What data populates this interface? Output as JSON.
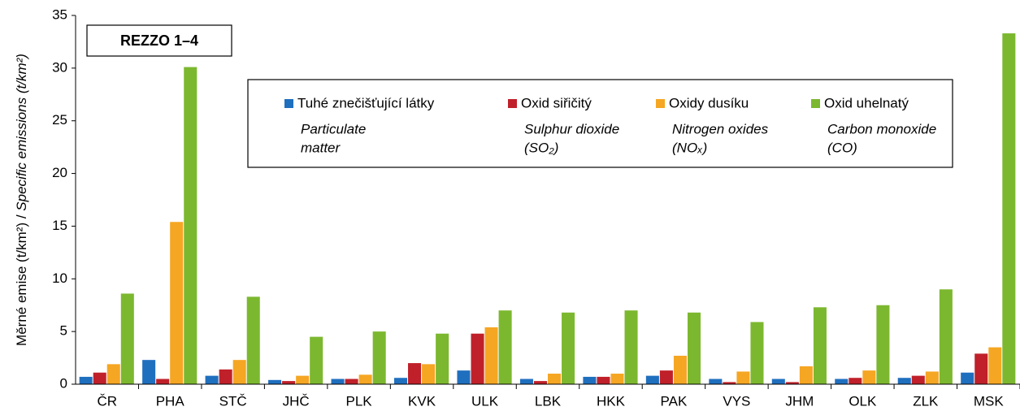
{
  "chart_data": {
    "type": "bar",
    "annotation": "REZZO 1–4",
    "y_label": [
      "Měrné emise (t/km²) / ",
      "Specific emissions (t/km²)"
    ],
    "categories": [
      "ČR",
      "PHA",
      "STČ",
      "JHČ",
      "PLK",
      "KVK",
      "ULK",
      "LBK",
      "HKK",
      "PAK",
      "VYS",
      "JHM",
      "OLK",
      "ZLK",
      "MSK"
    ],
    "series": [
      {
        "name": "Tuhé znečišťující látky",
        "color": "#1f6fbf",
        "values": [
          0.7,
          2.3,
          0.8,
          0.4,
          0.5,
          0.6,
          1.3,
          0.5,
          0.7,
          0.8,
          0.5,
          0.5,
          0.5,
          0.6,
          1.1
        ]
      },
      {
        "name": "Oxid siřičitý",
        "color": "#c0202a",
        "values": [
          1.1,
          0.5,
          1.4,
          0.3,
          0.5,
          2.0,
          4.8,
          0.3,
          0.7,
          1.3,
          0.2,
          0.2,
          0.6,
          0.8,
          2.9
        ]
      },
      {
        "name": "Oxidy dusíku",
        "color": "#f5a623",
        "values": [
          1.9,
          15.4,
          2.3,
          0.8,
          0.9,
          1.9,
          5.4,
          1.0,
          1.0,
          2.7,
          1.2,
          1.7,
          1.3,
          1.2,
          3.5
        ]
      },
      {
        "name": "Oxid uhelnatý",
        "color": "#7cb82f",
        "values": [
          8.6,
          30.1,
          8.3,
          4.5,
          5.0,
          4.8,
          7.0,
          6.8,
          7.0,
          6.8,
          5.9,
          7.3,
          7.5,
          9.0,
          33.3
        ]
      }
    ],
    "legend_notes": [
      [
        "Particulate",
        "matter"
      ],
      [
        "Sulphur dioxide",
        "(SO₂)"
      ],
      [
        "Nitrogen oxides",
        "(NOₓ)"
      ],
      [
        "Carbon monoxide",
        "(CO)"
      ]
    ],
    "ylim": [
      0,
      35
    ],
    "yticks": [
      0,
      5,
      10,
      15,
      20,
      25,
      30,
      35
    ],
    "grid": false
  }
}
